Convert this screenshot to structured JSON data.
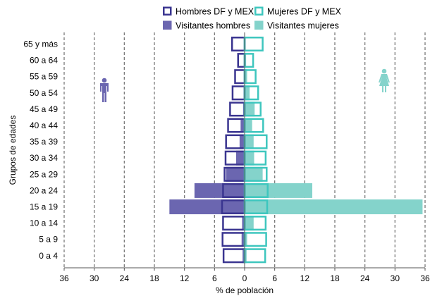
{
  "chart_data": {
    "type": "bar",
    "orientation": "horizontal",
    "style": "population-pyramid",
    "xlabel": "% de población",
    "ylabel": "Grupos de edades",
    "xlim": [
      -36,
      36
    ],
    "x_ticks": [
      -36,
      -30,
      -24,
      -18,
      -12,
      -6,
      0,
      6,
      12,
      18,
      24,
      30,
      36
    ],
    "x_tick_labels": [
      "36",
      "30",
      "24",
      "18",
      "12",
      "6",
      "0",
      "6",
      "12",
      "18",
      "24",
      "30",
      "36"
    ],
    "grid": "vertical dashed",
    "legend_position": "top",
    "categories": [
      "0 a 4",
      "5 a 9",
      "10 a 14",
      "15 a 19",
      "20 a 24",
      "25 a 29",
      "30 a 34",
      "35 a 39",
      "40 a 44",
      "45 a 49",
      "50 a 54",
      "55 a 59",
      "60 a 64",
      "65 y más"
    ],
    "category_labels": [
      "0 a 4",
      "5 a 9",
      "10 a 14",
      "15 a 19",
      "20 a 24",
      "25 a 29",
      "30 a 34",
      "35 a 39",
      "40 a 44",
      "45 a 49",
      "50 a 54",
      "55 a 59",
      "60 a 64",
      "65 y más"
    ],
    "series": [
      {
        "name": "Visitantes hombres",
        "side": "left",
        "style": "filled",
        "color": "#6B66B0",
        "values": [
          0.4,
          0.6,
          0.5,
          15.0,
          10.0,
          3.7,
          1.7,
          1.0,
          0.8,
          0.3,
          0.2,
          0.1,
          0.1,
          0.1
        ]
      },
      {
        "name": "Visitantes mujeres",
        "side": "right",
        "style": "filled",
        "color": "#84D3CB",
        "values": [
          0.4,
          0.5,
          1.8,
          35.5,
          13.5,
          3.6,
          1.9,
          1.8,
          1.5,
          2.0,
          1.0,
          0.5,
          0.3,
          0.2
        ]
      },
      {
        "name": "Hombres DF y MEX",
        "side": "left",
        "style": "outline",
        "color": "#3A3590",
        "values": [
          4.2,
          4.4,
          4.3,
          4.5,
          4.3,
          4.0,
          3.8,
          3.7,
          3.3,
          2.9,
          2.4,
          1.9,
          1.3,
          2.5
        ]
      },
      {
        "name": "Mujeres DF y MEX",
        "side": "right",
        "style": "outline",
        "color": "#3EC6BE",
        "values": [
          4.1,
          4.3,
          4.2,
          4.5,
          4.6,
          4.4,
          4.2,
          4.4,
          3.7,
          3.2,
          2.7,
          2.2,
          1.7,
          3.6
        ]
      }
    ],
    "legend_rows": [
      [
        "Hombres DF y MEX",
        "Mujeres DF y MEX"
      ],
      [
        "Visitantes hombres",
        "Visitantes mujeres"
      ]
    ],
    "icons": {
      "left": "male-person-icon",
      "right": "female-person-icon"
    }
  }
}
